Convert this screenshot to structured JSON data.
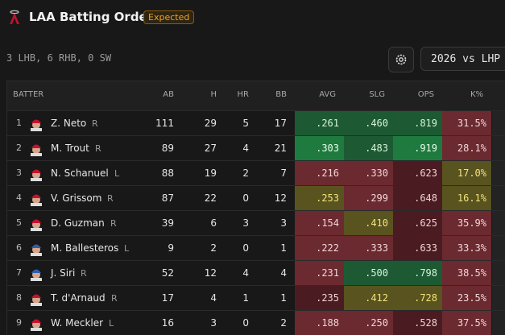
{
  "header": {
    "title": "LAA Batting Order",
    "badge": "Expected",
    "summary": "3 LHB, 6 RHB, 0 SW",
    "split": "2026 vs LHP"
  },
  "table": {
    "columns": [
      "BATTER",
      "AB",
      "H",
      "HR",
      "BB",
      "AVG",
      "SLG",
      "OPS",
      "K%"
    ],
    "rows": [
      {
        "order": "1",
        "name": "Z. Neto",
        "hand": "R",
        "ab": "111",
        "h": "29",
        "hr": "5",
        "bb": "17",
        "rates": [
          ".261",
          ".460",
          ".819",
          "31.5%"
        ],
        "colors": [
          "#1d5a33",
          "#1d5a33",
          "#1d5a33",
          "#6a2a30"
        ]
      },
      {
        "order": "2",
        "name": "M. Trout",
        "hand": "R",
        "ab": "89",
        "h": "27",
        "hr": "4",
        "bb": "21",
        "rates": [
          ".303",
          ".483",
          ".919",
          "28.1%"
        ],
        "colors": [
          "#1f7a40",
          "#1d5a33",
          "#1f7a40",
          "#6a2a30"
        ]
      },
      {
        "order": "3",
        "name": "N. Schanuel",
        "hand": "L",
        "ab": "88",
        "h": "19",
        "hr": "2",
        "bb": "7",
        "rates": [
          ".216",
          ".330",
          ".623",
          "17.0%"
        ],
        "colors": [
          "#6a2a30",
          "#6a2a30",
          "#4a1c22",
          "#58531f"
        ]
      },
      {
        "order": "4",
        "name": "V. Grissom",
        "hand": "R",
        "ab": "87",
        "h": "22",
        "hr": "0",
        "bb": "12",
        "rates": [
          ".253",
          ".299",
          ".648",
          "16.1%"
        ],
        "colors": [
          "#58531f",
          "#6a2a30",
          "#4a1c22",
          "#58531f"
        ]
      },
      {
        "order": "5",
        "name": "D. Guzman",
        "hand": "R",
        "ab": "39",
        "h": "6",
        "hr": "3",
        "bb": "3",
        "rates": [
          ".154",
          ".410",
          ".625",
          "35.9%"
        ],
        "colors": [
          "#6a2a30",
          "#58531f",
          "#4a1c22",
          "#6a2a30"
        ]
      },
      {
        "order": "6",
        "name": "M. Ballesteros",
        "hand": "L",
        "ab": "9",
        "h": "2",
        "hr": "0",
        "bb": "1",
        "rates": [
          ".222",
          ".333",
          ".633",
          "33.3%"
        ],
        "colors": [
          "#6a2a30",
          "#6a2a30",
          "#4a1c22",
          "#6a2a30"
        ]
      },
      {
        "order": "7",
        "name": "J. Siri",
        "hand": "R",
        "ab": "52",
        "h": "12",
        "hr": "4",
        "bb": "4",
        "rates": [
          ".231",
          ".500",
          ".798",
          "38.5%"
        ],
        "colors": [
          "#6a2a30",
          "#1d5a33",
          "#1d5a33",
          "#6a2a30"
        ]
      },
      {
        "order": "8",
        "name": "T. d'Arnaud",
        "hand": "R",
        "ab": "17",
        "h": "4",
        "hr": "1",
        "bb": "1",
        "rates": [
          ".235",
          ".412",
          ".728",
          "23.5%"
        ],
        "colors": [
          "#4a1c22",
          "#58531f",
          "#58531f",
          "#6a2a30"
        ]
      },
      {
        "order": "9",
        "name": "W. Meckler",
        "hand": "L",
        "ab": "16",
        "h": "3",
        "hr": "0",
        "bb": "2",
        "rates": [
          ".188",
          ".250",
          ".528",
          "37.5%"
        ],
        "colors": [
          "#6a2a30",
          "#6a2a30",
          "#4a1c22",
          "#6a2a30"
        ]
      }
    ]
  }
}
